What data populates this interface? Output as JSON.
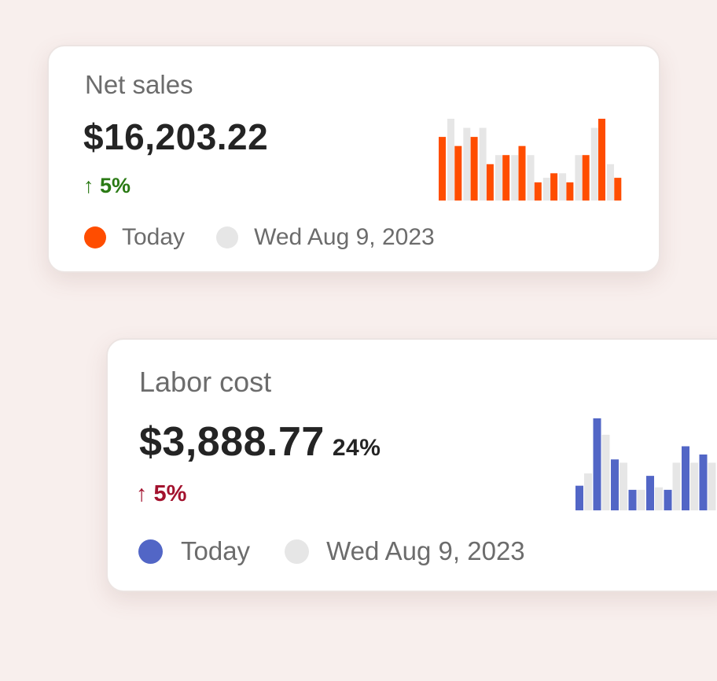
{
  "cards": {
    "net_sales": {
      "title": "Net sales",
      "amount": "$16,203.22",
      "change": "↑ 5%",
      "change_direction": "up",
      "change_color": "#2a7a14",
      "legend": {
        "today": "Today",
        "compare": "Wed Aug 9, 2023"
      },
      "today_color": "#ff4d00",
      "compare_color": "#e6e6e6"
    },
    "labor_cost": {
      "title": "Labor cost",
      "amount": "$3,888.77",
      "percent": "24%",
      "change": "↑ 5%",
      "change_direction": "up",
      "change_color": "#a3122e",
      "legend": {
        "today": "Today",
        "compare": "Wed Aug 9, 2023"
      },
      "today_color": "#5266c6",
      "compare_color": "#e6e6e6"
    }
  },
  "chart_data": [
    {
      "type": "bar",
      "series": [
        {
          "name": "Today",
          "values": [
            7,
            6,
            7,
            4,
            5,
            6,
            2,
            3,
            2,
            5,
            9,
            2.5
          ]
        },
        {
          "name": "Wed Aug 9, 2023",
          "values": [
            9,
            8,
            8,
            5,
            5,
            5,
            2.5,
            3,
            5,
            8,
            4,
            0
          ]
        }
      ]
    },
    {
      "type": "bar",
      "series": [
        {
          "name": "Today",
          "values": [
            3,
            11.2,
            6.2,
            2.5,
            4.2,
            2.5,
            7.8,
            6.8
          ]
        },
        {
          "name": "Wed Aug 9, 2023",
          "values": [
            4.5,
            9.2,
            5.8,
            2.5,
            2.8,
            5.8,
            5.8,
            5.8
          ]
        }
      ]
    }
  ]
}
